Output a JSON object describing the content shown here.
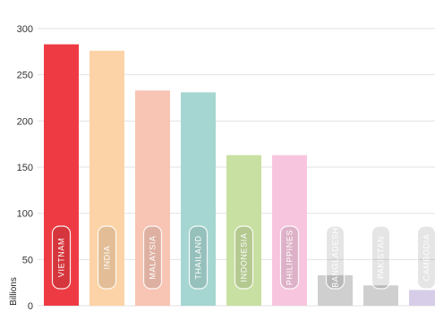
{
  "chart_data": {
    "type": "bar",
    "ylabel": "Billions",
    "ylim": [
      0,
      300
    ],
    "yticks": [
      0,
      50,
      100,
      150,
      200,
      250,
      300
    ],
    "grid": true,
    "categories": [
      "VIETNAM",
      "INDIA",
      "MALAYSIA",
      "THAILAND",
      "INDONESIA",
      "PHILIPPINES",
      "BANGLADESH",
      "PAKISTAN",
      "CAMBODIA"
    ],
    "values": [
      283,
      276,
      233,
      231,
      163,
      163,
      33,
      22,
      17
    ],
    "colors": [
      "#ee3b43",
      "#fcd3a6",
      "#f8c4b4",
      "#a6d6d1",
      "#c8e0a1",
      "#f7c6de",
      "#cfcfcf",
      "#cfcfcf",
      "#d7cde8"
    ]
  }
}
